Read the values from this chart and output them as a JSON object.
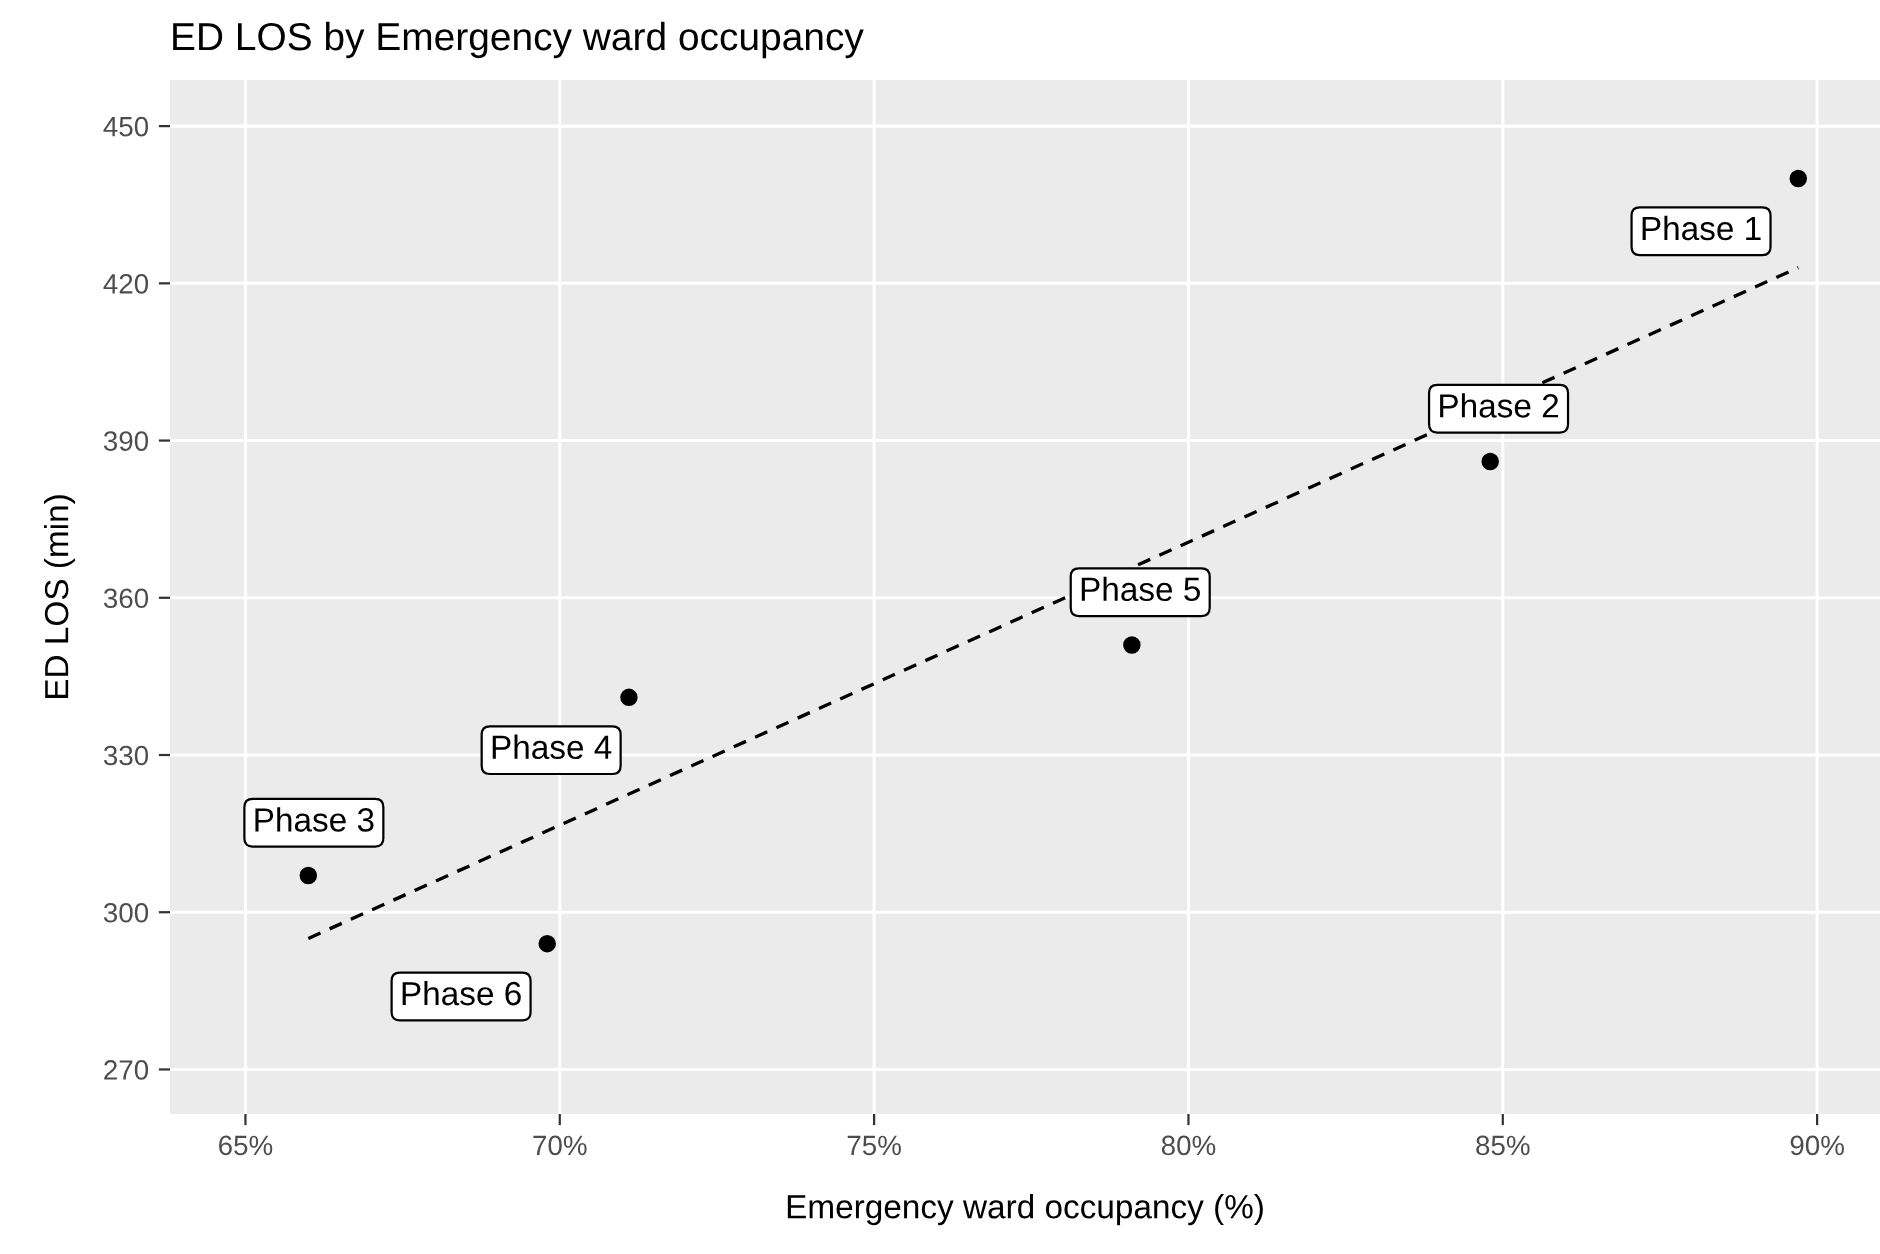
{
  "chart_data": {
    "type": "scatter",
    "title": "ED LOS by Emergency ward occupancy",
    "xlabel": "Emergency ward occupancy (%)",
    "ylabel": "ED LOS (min)",
    "series": [
      {
        "type": "scatter",
        "color": "#000000",
        "x": [
          89.7,
          84.8,
          79.1,
          71.1,
          66.0,
          69.8
        ],
        "values": [
          440,
          386,
          351,
          341,
          307,
          294
        ]
      },
      {
        "type": "line",
        "color": "#000000",
        "line_style": "dashed",
        "marker": "none",
        "x": [
          66.0,
          89.7
        ],
        "values": [
          295,
          423
        ]
      }
    ],
    "annotations": [
      {
        "text": "Phase 1",
        "x": 89.7,
        "y": 440
      },
      {
        "text": "Phase 2",
        "x": 84.8,
        "y": 386
      },
      {
        "text": "Phase 5",
        "x": 79.1,
        "y": 351
      },
      {
        "text": "Phase 4",
        "x": 71.1,
        "y": 341
      },
      {
        "text": "Phase 3",
        "x": 66.0,
        "y": 307
      },
      {
        "text": "Phase 6",
        "x": 69.8,
        "y": 294
      }
    ],
    "marker": "circle",
    "xlim": [
      63.8,
      91.0
    ],
    "ylim": [
      261.5,
      458.8
    ],
    "xticks": [
      {
        "value": 65,
        "label": "65%"
      },
      {
        "value": 70,
        "label": "70%"
      },
      {
        "value": 75,
        "label": "75%"
      },
      {
        "value": 80,
        "label": "80%"
      },
      {
        "value": 85,
        "label": "85%"
      },
      {
        "value": 90,
        "label": "90%"
      }
    ],
    "yticks": [
      270,
      300,
      330,
      360,
      390,
      420,
      450
    ],
    "grid": true,
    "legend": false
  }
}
